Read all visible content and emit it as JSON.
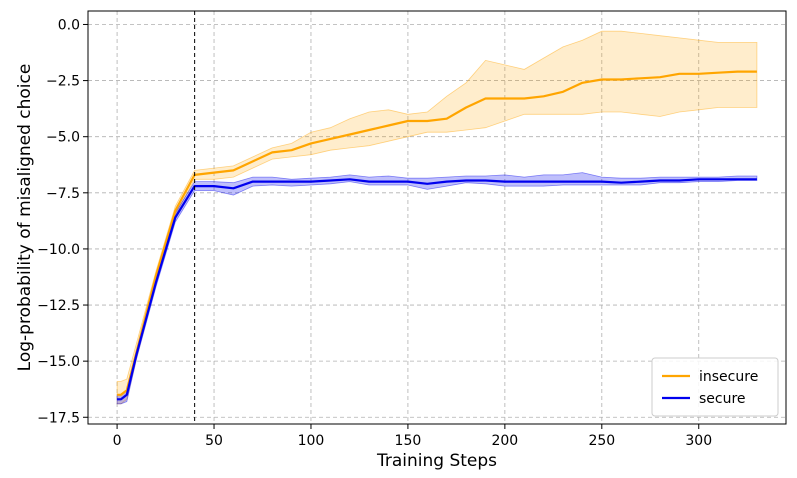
{
  "chart_data": {
    "type": "line",
    "title": "",
    "xlabel": "Training Steps",
    "ylabel": "Log-probability of misaligned choice",
    "xlim": [
      -15,
      345
    ],
    "ylim": [
      -17.8,
      0.6
    ],
    "xticks": [
      0,
      50,
      100,
      150,
      200,
      250,
      300
    ],
    "xtick_labels": [
      "0",
      "50",
      "100",
      "150",
      "200",
      "250",
      "300"
    ],
    "yticks": [
      0.0,
      -2.5,
      -5.0,
      -7.5,
      -10.0,
      -12.5,
      -15.0,
      -17.5
    ],
    "ytick_labels": [
      "0.0",
      "−2.5",
      "−5.0",
      "−7.5",
      "−10.0",
      "−12.5",
      "−15.0",
      "−17.5"
    ],
    "grid": true,
    "legend_position": "bottom-right",
    "vline_x": 40,
    "series": [
      {
        "name": "insecure",
        "color": "#FFA500",
        "x": [
          0,
          2,
          5,
          10,
          20,
          30,
          40,
          50,
          60,
          70,
          80,
          90,
          100,
          110,
          120,
          130,
          140,
          150,
          160,
          170,
          180,
          190,
          200,
          210,
          220,
          230,
          240,
          250,
          260,
          270,
          280,
          290,
          300,
          310,
          320,
          330
        ],
        "y": [
          -16.5,
          -16.5,
          -16.3,
          -14.6,
          -11.2,
          -8.3,
          -6.7,
          -6.6,
          -6.5,
          -6.1,
          -5.7,
          -5.6,
          -5.3,
          -5.1,
          -4.9,
          -4.7,
          -4.5,
          -4.3,
          -4.3,
          -4.2,
          -3.7,
          -3.3,
          -3.3,
          -3.3,
          -3.2,
          -3.0,
          -2.6,
          -2.45,
          -2.45,
          -2.4,
          -2.35,
          -2.2,
          -2.2,
          -2.15,
          -2.1,
          -2.1
        ],
        "upper": [
          -15.9,
          -15.9,
          -15.8,
          -14.2,
          -11.0,
          -8.1,
          -6.5,
          -6.4,
          -6.3,
          -5.9,
          -5.5,
          -5.3,
          -4.8,
          -4.6,
          -4.2,
          -3.9,
          -3.8,
          -4.0,
          -3.9,
          -3.2,
          -2.6,
          -1.6,
          -1.8,
          -2.0,
          -1.5,
          -1.0,
          -0.7,
          -0.3,
          -0.3,
          -0.4,
          -0.5,
          -0.6,
          -0.7,
          -0.8,
          -0.8,
          -0.8
        ],
        "lower": [
          -16.9,
          -16.9,
          -16.7,
          -14.9,
          -11.5,
          -8.5,
          -6.9,
          -6.9,
          -6.8,
          -6.4,
          -6.0,
          -5.9,
          -5.8,
          -5.6,
          -5.5,
          -5.4,
          -5.2,
          -5.0,
          -4.8,
          -4.8,
          -4.7,
          -4.6,
          -4.3,
          -4.0,
          -4.0,
          -4.0,
          -4.0,
          -3.9,
          -3.9,
          -4.0,
          -4.1,
          -3.9,
          -3.8,
          -3.7,
          -3.7,
          -3.7
        ]
      },
      {
        "name": "secure",
        "color": "#0000EE",
        "x": [
          0,
          2,
          5,
          10,
          20,
          30,
          40,
          50,
          60,
          70,
          80,
          90,
          100,
          110,
          120,
          130,
          140,
          150,
          160,
          170,
          180,
          190,
          200,
          210,
          220,
          230,
          240,
          250,
          260,
          270,
          280,
          290,
          300,
          310,
          320,
          330
        ],
        "y": [
          -16.7,
          -16.7,
          -16.5,
          -14.7,
          -11.5,
          -8.6,
          -7.2,
          -7.2,
          -7.3,
          -7.0,
          -7.0,
          -7.0,
          -7.0,
          -6.95,
          -6.9,
          -7.0,
          -7.0,
          -7.0,
          -7.1,
          -7.0,
          -6.95,
          -6.95,
          -7.0,
          -7.0,
          -7.0,
          -7.0,
          -7.0,
          -7.0,
          -7.05,
          -7.0,
          -6.95,
          -6.95,
          -6.9,
          -6.9,
          -6.9,
          -6.9
        ],
        "upper": [
          -16.5,
          -16.5,
          -16.3,
          -14.5,
          -11.3,
          -8.4,
          -7.0,
          -7.0,
          -7.05,
          -6.8,
          -6.8,
          -6.9,
          -6.85,
          -6.8,
          -6.7,
          -6.8,
          -6.75,
          -6.85,
          -6.85,
          -6.8,
          -6.75,
          -6.75,
          -6.7,
          -6.8,
          -6.7,
          -6.7,
          -6.6,
          -6.8,
          -6.85,
          -6.85,
          -6.8,
          -6.8,
          -6.8,
          -6.8,
          -6.75,
          -6.75
        ],
        "lower": [
          -16.9,
          -16.9,
          -16.8,
          -14.9,
          -11.7,
          -8.8,
          -7.4,
          -7.4,
          -7.6,
          -7.2,
          -7.15,
          -7.2,
          -7.15,
          -7.1,
          -7.0,
          -7.15,
          -7.15,
          -7.15,
          -7.35,
          -7.2,
          -7.05,
          -7.1,
          -7.2,
          -7.2,
          -7.2,
          -7.15,
          -7.15,
          -7.15,
          -7.15,
          -7.15,
          -7.05,
          -7.05,
          -7.0,
          -7.0,
          -6.95,
          -6.95
        ]
      }
    ]
  }
}
